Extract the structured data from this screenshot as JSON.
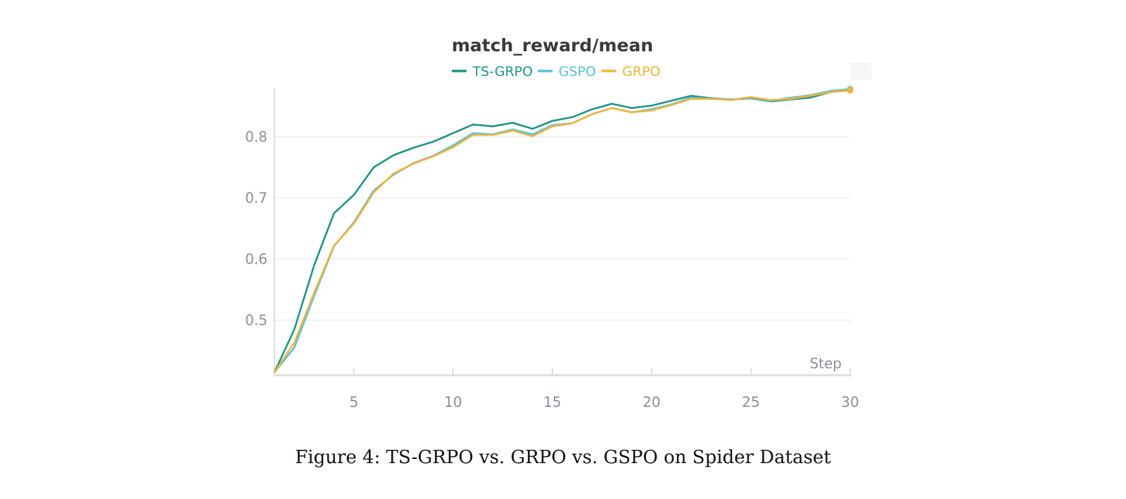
{
  "caption": "Figure 4: TS-GRPO vs. GRPO vs. GSPO on Spider Dataset",
  "chart_data": {
    "type": "line",
    "title": "match_reward/mean",
    "xlabel": "Step",
    "ylabel": "",
    "xlim": [
      1,
      30
    ],
    "ylim": [
      0.41,
      0.88
    ],
    "xticks": [
      5,
      10,
      15,
      20,
      25,
      30
    ],
    "yticks": [
      0.5,
      0.6,
      0.7,
      0.8
    ],
    "grid": true,
    "legend_position": "top",
    "x": [
      1,
      2,
      3,
      4,
      5,
      6,
      7,
      8,
      9,
      10,
      11,
      12,
      13,
      14,
      15,
      16,
      17,
      18,
      19,
      20,
      21,
      22,
      23,
      24,
      25,
      26,
      27,
      28,
      29,
      30
    ],
    "series": [
      {
        "name": "TS-GRPO",
        "color": "#1f9486",
        "values": [
          0.415,
          0.485,
          0.59,
          0.675,
          0.705,
          0.75,
          0.77,
          0.782,
          0.792,
          0.806,
          0.82,
          0.817,
          0.823,
          0.813,
          0.826,
          0.832,
          0.845,
          0.854,
          0.847,
          0.851,
          0.859,
          0.867,
          0.863,
          0.861,
          0.863,
          0.858,
          0.861,
          0.864,
          0.873,
          0.876
        ]
      },
      {
        "name": "GSPO",
        "color": "#5bc0de",
        "values": [
          0.415,
          0.455,
          0.54,
          0.621,
          0.66,
          0.712,
          0.738,
          0.757,
          0.769,
          0.786,
          0.806,
          0.804,
          0.812,
          0.804,
          0.819,
          0.822,
          0.837,
          0.847,
          0.84,
          0.845,
          0.853,
          0.864,
          0.862,
          0.861,
          0.864,
          0.859,
          0.864,
          0.868,
          0.875,
          0.878
        ]
      },
      {
        "name": "GRPO",
        "color": "#f0b43c",
        "values": [
          0.415,
          0.463,
          0.545,
          0.622,
          0.658,
          0.709,
          0.74,
          0.756,
          0.768,
          0.783,
          0.803,
          0.803,
          0.81,
          0.801,
          0.817,
          0.822,
          0.837,
          0.847,
          0.84,
          0.843,
          0.852,
          0.862,
          0.862,
          0.86,
          0.865,
          0.86,
          0.862,
          0.867,
          0.873,
          0.876
        ]
      }
    ]
  }
}
